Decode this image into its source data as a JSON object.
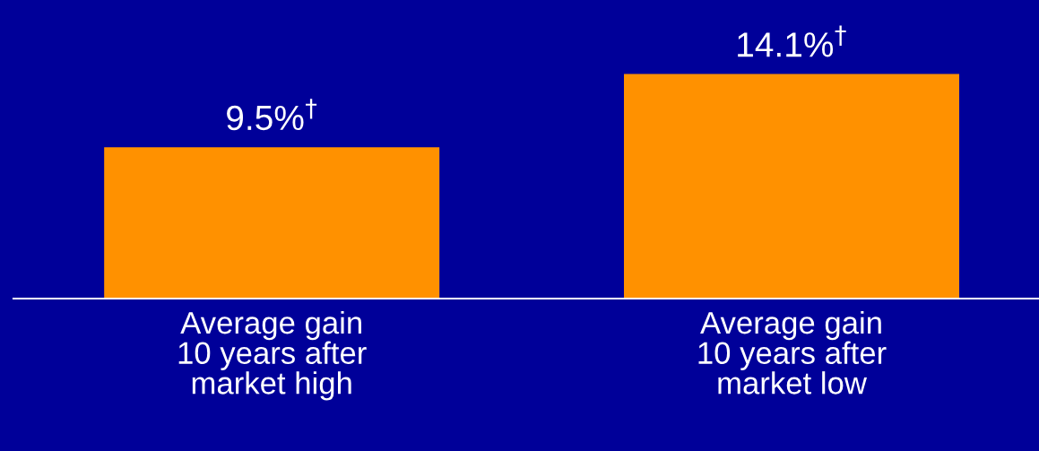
{
  "chart_data": {
    "type": "bar",
    "categories": [
      "Average gain\n10 years after\nmarket high",
      "Average gain\n10 years after\nmarket low"
    ],
    "values": [
      9.5,
      14.1
    ],
    "color": "#ff9100",
    "value_labels": [
      "9.5%$^{†}$",
      "14.1%$^{†}$"
    ],
    "grid": false,
    "legend": false
  }
}
